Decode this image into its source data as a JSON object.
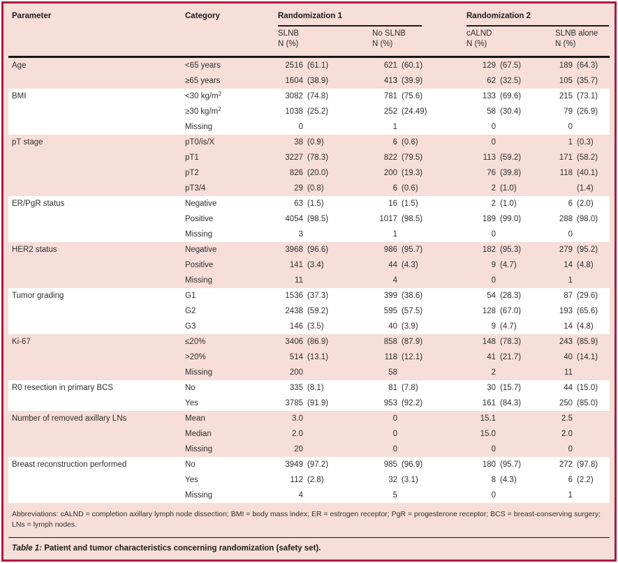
{
  "colors": {
    "frame_border": "#ae1a40",
    "table_background": "#f7ded8",
    "stripe_background": "#ffffff",
    "rule_black": "#141414"
  },
  "header": {
    "parameter": "Parameter",
    "category": "Category",
    "group1": {
      "label": "Randomization 1",
      "col1": "SLNB",
      "col2": "No SLNB"
    },
    "group2": {
      "label": "Randomization 2",
      "col1": "cALND",
      "col2": "SLNB alone"
    },
    "nsub": "N (%)"
  },
  "groups": [
    {
      "parameter": "Age",
      "rows": [
        {
          "category": "<65 years",
          "values": [
            [
              "2516",
              "(61.1)"
            ],
            [
              "621",
              "(60.1)"
            ],
            [
              "129",
              "(67.5)"
            ],
            [
              "189",
              "(64.3)"
            ]
          ]
        },
        {
          "category": "≥65 years",
          "values": [
            [
              "1604",
              "(38.9)"
            ],
            [
              "413",
              "(39.9)"
            ],
            [
              "62",
              "(32.5)"
            ],
            [
              "105",
              "(35.7)"
            ]
          ]
        }
      ]
    },
    {
      "parameter": "BMI",
      "rows": [
        {
          "category": "<30 kg/m²",
          "values": [
            [
              "3082",
              "(74.8)"
            ],
            [
              "781",
              "(75.6)"
            ],
            [
              "133",
              "(69.6)"
            ],
            [
              "215",
              "(73.1)"
            ]
          ]
        },
        {
          "category": "≥30 kg/m²",
          "values": [
            [
              "1038",
              "(25.2)"
            ],
            [
              "252",
              "(24.49)"
            ],
            [
              "58",
              "(30.4)"
            ],
            [
              "79",
              "(26.9)"
            ]
          ]
        },
        {
          "category": "Missing",
          "values": [
            [
              "0",
              ""
            ],
            [
              "1",
              ""
            ],
            [
              "0",
              ""
            ],
            [
              "0",
              ""
            ]
          ]
        }
      ]
    },
    {
      "parameter": "pT stage",
      "rows": [
        {
          "category": "pT0/is/X",
          "values": [
            [
              "38",
              "(0.9)"
            ],
            [
              "6",
              "(0.6)"
            ],
            [
              "0",
              ""
            ],
            [
              "1",
              "(0.3)"
            ]
          ]
        },
        {
          "category": "pT1",
          "values": [
            [
              "3227",
              "(78.3)"
            ],
            [
              "822",
              "(79.5)"
            ],
            [
              "113",
              "(59.2)"
            ],
            [
              "171",
              "(58.2)"
            ]
          ]
        },
        {
          "category": "pT2",
          "values": [
            [
              "826",
              "(20.0)"
            ],
            [
              "200",
              "(19.3)"
            ],
            [
              "76",
              "(39.8)"
            ],
            [
              "118",
              "(40.1)"
            ]
          ]
        },
        {
          "category": "pT3/4",
          "values": [
            [
              "29",
              "(0.8)"
            ],
            [
              "6",
              "(0.6)"
            ],
            [
              "2",
              "(1.0)"
            ],
            [
              "",
              "(1.4)"
            ]
          ]
        }
      ]
    },
    {
      "parameter": "ER/PgR status",
      "rows": [
        {
          "category": "Negative",
          "values": [
            [
              "63",
              "(1.5)"
            ],
            [
              "16",
              "(1.5)"
            ],
            [
              "2",
              "(1.0)"
            ],
            [
              "6",
              "(2.0)"
            ]
          ]
        },
        {
          "category": "Positive",
          "values": [
            [
              "4054",
              "(98.5)"
            ],
            [
              "1017",
              "(98.5)"
            ],
            [
              "189",
              "(99.0)"
            ],
            [
              "288",
              "(98.0)"
            ]
          ]
        },
        {
          "category": "Missing",
          "values": [
            [
              "3",
              ""
            ],
            [
              "1",
              ""
            ],
            [
              "0",
              ""
            ],
            [
              "0",
              ""
            ]
          ]
        }
      ]
    },
    {
      "parameter": "HER2 status",
      "rows": [
        {
          "category": "Negative",
          "values": [
            [
              "3968",
              "(96.6)"
            ],
            [
              "986",
              "(95.7)"
            ],
            [
              "182",
              "(95.3)"
            ],
            [
              "279",
              "(95.2)"
            ]
          ]
        },
        {
          "category": "Positive",
          "values": [
            [
              "141",
              "(3.4)"
            ],
            [
              "44",
              "(4.3)"
            ],
            [
              "9",
              "(4.7)"
            ],
            [
              "14",
              "(4.8)"
            ]
          ]
        },
        {
          "category": "Missing",
          "values": [
            [
              "11",
              ""
            ],
            [
              "4",
              ""
            ],
            [
              "0",
              ""
            ],
            [
              "1",
              ""
            ]
          ]
        }
      ]
    },
    {
      "parameter": "Tumor grading",
      "rows": [
        {
          "category": "G1",
          "values": [
            [
              "1536",
              "(37.3)"
            ],
            [
              "399",
              "(38.6)"
            ],
            [
              "54",
              "(28.3)"
            ],
            [
              "87",
              "(29.6)"
            ]
          ]
        },
        {
          "category": "G2",
          "values": [
            [
              "2438",
              "(59.2)"
            ],
            [
              "595",
              "(57.5)"
            ],
            [
              "128",
              "(67.0)"
            ],
            [
              "193",
              "(65.6)"
            ]
          ]
        },
        {
          "category": "G3",
          "values": [
            [
              "146",
              "(3.5)"
            ],
            [
              "40",
              "(3.9)"
            ],
            [
              "9",
              "(4.7)"
            ],
            [
              "14",
              "(4.8)"
            ]
          ]
        }
      ]
    },
    {
      "parameter": "Ki-67",
      "rows": [
        {
          "category": "≤20%",
          "values": [
            [
              "3406",
              "(86.9)"
            ],
            [
              "858",
              "(87.9)"
            ],
            [
              "148",
              "(78.3)"
            ],
            [
              "243",
              "(85.9)"
            ]
          ]
        },
        {
          "category": ">20%",
          "values": [
            [
              "514",
              "(13.1)"
            ],
            [
              "118",
              "(12.1)"
            ],
            [
              "41",
              "(21.7)"
            ],
            [
              "40",
              "(14.1)"
            ]
          ]
        },
        {
          "category": "Missing",
          "values": [
            [
              "200",
              ""
            ],
            [
              "58",
              ""
            ],
            [
              "2",
              ""
            ],
            [
              "11",
              ""
            ]
          ]
        }
      ]
    },
    {
      "parameter": "R0 resection in primary BCS",
      "rows": [
        {
          "category": "No",
          "values": [
            [
              "335",
              "(8.1)"
            ],
            [
              "81",
              "(7.8)"
            ],
            [
              "30",
              "(15.7)"
            ],
            [
              "44",
              "(15.0)"
            ]
          ]
        },
        {
          "category": "Yes",
          "values": [
            [
              "3785",
              "(91.9)"
            ],
            [
              "953",
              "(92.2)"
            ],
            [
              "161",
              "(84.3)"
            ],
            [
              "250",
              "(85.0)"
            ]
          ]
        }
      ]
    },
    {
      "parameter": "Number of removed axillary LNs",
      "rows": [
        {
          "category": "Mean",
          "values": [
            [
              "3.0",
              ""
            ],
            [
              "0",
              ""
            ],
            [
              "15.1",
              ""
            ],
            [
              "2.5",
              ""
            ]
          ]
        },
        {
          "category": "Median",
          "values": [
            [
              "2.0",
              ""
            ],
            [
              "0",
              ""
            ],
            [
              "15.0",
              ""
            ],
            [
              "2.0",
              ""
            ]
          ]
        },
        {
          "category": "Missing",
          "values": [
            [
              "20",
              ""
            ],
            [
              "0",
              ""
            ],
            [
              "0",
              ""
            ],
            [
              "0",
              ""
            ]
          ]
        }
      ]
    },
    {
      "parameter": "Breast reconstruction performed",
      "rows": [
        {
          "category": "No",
          "values": [
            [
              "3949",
              "(97.2)"
            ],
            [
              "985",
              "(96.9)"
            ],
            [
              "180",
              "(95.7)"
            ],
            [
              "272",
              "(97.8)"
            ]
          ]
        },
        {
          "category": "Yes",
          "values": [
            [
              "112",
              "(2.8)"
            ],
            [
              "32",
              "(3.1)"
            ],
            [
              "8",
              "(4.3)"
            ],
            [
              "6",
              "(2.2)"
            ]
          ]
        },
        {
          "category": "Missing",
          "values": [
            [
              "4",
              ""
            ],
            [
              "5",
              ""
            ],
            [
              "0",
              ""
            ],
            [
              "1",
              ""
            ]
          ]
        }
      ]
    }
  ],
  "footer": {
    "abbreviations": "Abbreviations: cALND = completion axillary lymph node dissection; BMI = body mass index; ER = estrogen receptor; PgR = progesterone receptor; BCS = breast-conserving surgery; LNs = lymph nodes.",
    "caption_label": "Table 1:",
    "caption_text": " Patient and tumor characteristics concerning randomization (safety set)."
  }
}
